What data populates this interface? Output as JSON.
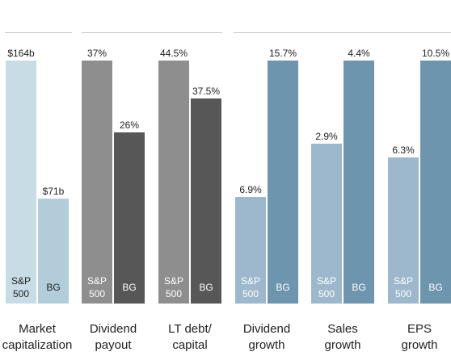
{
  "chart_data": {
    "type": "bar",
    "categories": [
      "Market\ncapitalization",
      "Dividend\npayout",
      "LT debt/\ncapital",
      "Dividend\ngrowth",
      "Sales\ngrowth",
      "EPS\ngrowth"
    ],
    "series_labels": [
      "S&P\n500",
      "BG"
    ],
    "groups": [
      {
        "category": "Market\ncapitalization",
        "values": [
          164,
          71
        ],
        "labels": [
          "$164b",
          "$71b"
        ],
        "colors": [
          "#c8dce6",
          "#b2ccda"
        ],
        "inlabel_colors": [
          "#222222",
          "#222222"
        ]
      },
      {
        "category": "Dividend\npayout",
        "values": [
          37,
          26
        ],
        "labels": [
          "37%",
          "26%"
        ],
        "colors": [
          "#8e8e8e",
          "#575757"
        ],
        "inlabel_colors": [
          "#ffffff",
          "#ffffff"
        ]
      },
      {
        "category": "LT debt/\ncapital",
        "values": [
          44.5,
          37.5
        ],
        "labels": [
          "44.5%",
          "37.5%"
        ],
        "colors": [
          "#8e8e8e",
          "#575757"
        ],
        "inlabel_colors": [
          "#ffffff",
          "#ffffff"
        ]
      },
      {
        "category": "Dividend\ngrowth",
        "values": [
          6.9,
          15.7
        ],
        "labels": [
          "6.9%",
          "15.7%"
        ],
        "colors": [
          "#9db8cc",
          "#6e95ae"
        ],
        "inlabel_colors": [
          "#ffffff",
          "#ffffff"
        ]
      },
      {
        "category": "Sales\ngrowth",
        "values": [
          2.9,
          4.4
        ],
        "labels": [
          "2.9%",
          "4.4%"
        ],
        "colors": [
          "#9db8cc",
          "#6e95ae"
        ],
        "inlabel_colors": [
          "#ffffff",
          "#ffffff"
        ]
      },
      {
        "category": "EPS\ngrowth",
        "values": [
          6.3,
          10.5
        ],
        "labels": [
          "6.3%",
          "10.5%"
        ],
        "colors": [
          "#9db8cc",
          "#6e95ae"
        ],
        "inlabel_colors": [
          "#ffffff",
          "#ffffff"
        ]
      }
    ],
    "legend": "none",
    "grid": false
  }
}
